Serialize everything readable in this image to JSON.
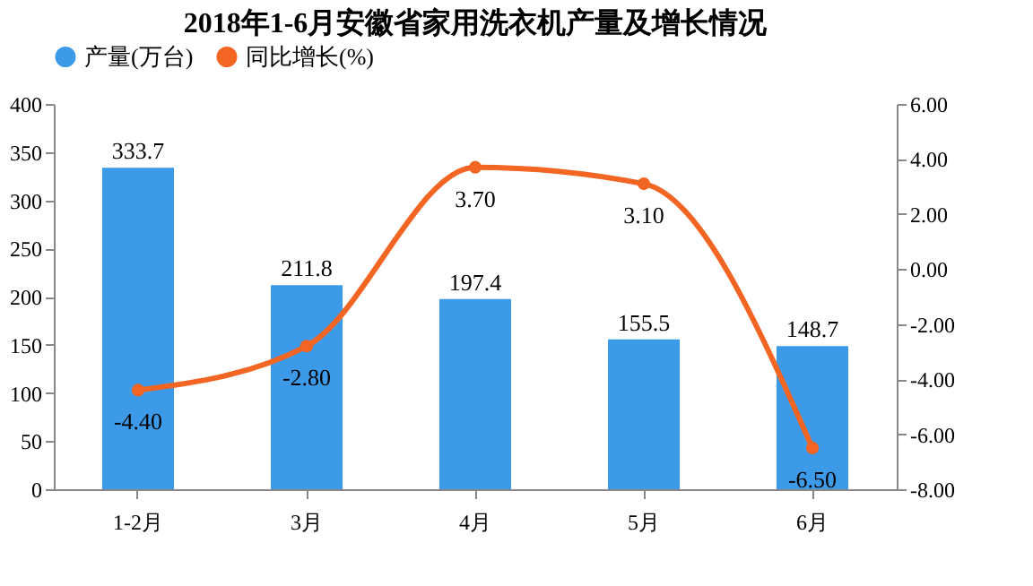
{
  "chart_data": {
    "type": "bar",
    "title": "2018年1-6月安徽省家用洗衣机产量及增长情况",
    "categories": [
      "1-2月",
      "3月",
      "4月",
      "5月",
      "6月"
    ],
    "series": [
      {
        "name": "产量(万台)",
        "color": "#3d9ae8",
        "values": [
          333.7,
          211.8,
          197.4,
          155.5,
          148.7
        ],
        "value_labels": [
          "333.7",
          "211.8",
          "197.4",
          "155.5",
          "148.7"
        ]
      },
      {
        "name": "同比增长(%)",
        "type": "line",
        "axis": "y2",
        "color": "#f26522",
        "values": [
          -4.4,
          -2.8,
          3.7,
          3.1,
          -6.5
        ],
        "value_labels": [
          "-4.40",
          "-2.80",
          "3.70",
          "3.10",
          "-6.50"
        ]
      }
    ],
    "ylim": [
      0,
      400
    ],
    "yticks": [
      0,
      50,
      100,
      150,
      200,
      250,
      300,
      350,
      400
    ],
    "y2lim": [
      -8,
      6
    ],
    "y2ticks": [
      {
        "value": -8,
        "label": "-8.00"
      },
      {
        "value": -6,
        "label": "-6.00"
      },
      {
        "value": -4,
        "label": "-4.00"
      },
      {
        "value": -2,
        "label": "-2.00"
      },
      {
        "value": 0,
        "label": "0.00"
      },
      {
        "value": 2,
        "label": "2.00"
      },
      {
        "value": 4,
        "label": "4.00"
      },
      {
        "value": 6,
        "label": "6.00"
      }
    ],
    "grid": false,
    "legend": "top",
    "marker": "circle",
    "line_style": "solid"
  }
}
